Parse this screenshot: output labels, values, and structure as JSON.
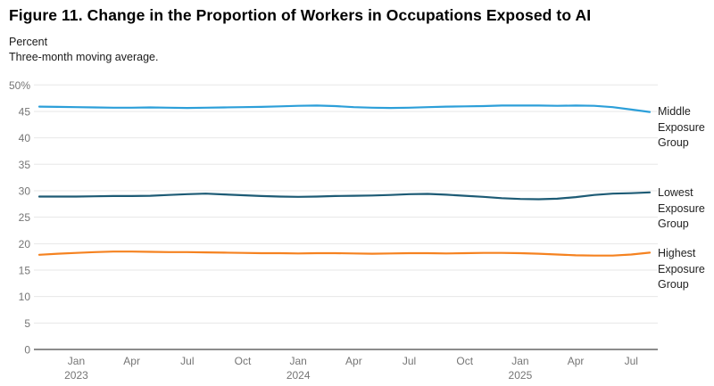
{
  "figure": {
    "title": "Figure 11. Change in the Proportion of Workers in Occupations Exposed to AI",
    "subtitle_unit": "Percent",
    "subtitle_note": "Three-month moving average."
  },
  "colors": {
    "middle": "#2C9FD9",
    "lowest": "#1D5B75",
    "highest": "#F58220",
    "gridline": "#E7E7E7",
    "zero_line": "#8C8C8C",
    "tick_label": "#757575",
    "series_label": "#222222",
    "background": "#FFFFFF"
  },
  "chart_data": {
    "type": "line",
    "title": "Figure 11. Change in the Proportion of Workers in Occupations Exposed to AI",
    "ylabel": "Percent",
    "note": "Three-month moving average.",
    "ylim": [
      0,
      50
    ],
    "grid": "horizontal",
    "legend_position": "right-end-labels",
    "y_ticks": [
      {
        "v": 50,
        "label": "50%"
      },
      {
        "v": 45,
        "label": "45"
      },
      {
        "v": 40,
        "label": "40"
      },
      {
        "v": 35,
        "label": "35"
      },
      {
        "v": 30,
        "label": "30"
      },
      {
        "v": 25,
        "label": "25"
      },
      {
        "v": 20,
        "label": "20"
      },
      {
        "v": 15,
        "label": "15"
      },
      {
        "v": 10,
        "label": "10"
      },
      {
        "v": 5,
        "label": "5"
      },
      {
        "v": 0,
        "label": "0"
      }
    ],
    "x": [
      "Nov 2022",
      "Dec 2022",
      "Jan 2023",
      "Feb 2023",
      "Mar 2023",
      "Apr 2023",
      "May 2023",
      "Jun 2023",
      "Jul 2023",
      "Aug 2023",
      "Sep 2023",
      "Oct 2023",
      "Nov 2023",
      "Dec 2023",
      "Jan 2024",
      "Feb 2024",
      "Mar 2024",
      "Apr 2024",
      "May 2024",
      "Jun 2024",
      "Jul 2024",
      "Aug 2024",
      "Sep 2024",
      "Oct 2024",
      "Nov 2024",
      "Dec 2024",
      "Jan 2025",
      "Feb 2025",
      "Mar 2025",
      "Apr 2025",
      "May 2025",
      "Jun 2025",
      "Jul 2025",
      "Aug 2025"
    ],
    "x_tick_labels": [
      {
        "month": "Jan",
        "year": "2023",
        "index": 2
      },
      {
        "month": "Apr",
        "year": "",
        "index": 5
      },
      {
        "month": "Jul",
        "year": "",
        "index": 8
      },
      {
        "month": "Oct",
        "year": "",
        "index": 11
      },
      {
        "month": "Jan",
        "year": "2024",
        "index": 14
      },
      {
        "month": "Apr",
        "year": "",
        "index": 17
      },
      {
        "month": "Jul",
        "year": "",
        "index": 20
      },
      {
        "month": "Oct",
        "year": "",
        "index": 23
      },
      {
        "month": "Jan",
        "year": "2025",
        "index": 26
      },
      {
        "month": "Apr",
        "year": "",
        "index": 29
      },
      {
        "month": "Jul",
        "year": "",
        "index": 32
      }
    ],
    "series": [
      {
        "name": "Middle Exposure Group",
        "color_key": "middle",
        "values": [
          45.9,
          45.85,
          45.8,
          45.75,
          45.7,
          45.7,
          45.75,
          45.7,
          45.65,
          45.7,
          45.75,
          45.8,
          45.85,
          45.95,
          46.05,
          46.1,
          46.0,
          45.8,
          45.7,
          45.65,
          45.7,
          45.8,
          45.9,
          45.95,
          46.0,
          46.1,
          46.1,
          46.1,
          46.05,
          46.1,
          46.05,
          45.8,
          45.35,
          44.9
        ]
      },
      {
        "name": "Lowest Exposure Group",
        "color_key": "lowest",
        "values": [
          28.9,
          28.9,
          28.9,
          28.95,
          29.0,
          29.0,
          29.05,
          29.2,
          29.35,
          29.45,
          29.3,
          29.15,
          29.0,
          28.9,
          28.85,
          28.9,
          29.0,
          29.05,
          29.1,
          29.2,
          29.35,
          29.4,
          29.25,
          29.05,
          28.85,
          28.6,
          28.45,
          28.4,
          28.5,
          28.8,
          29.2,
          29.45,
          29.55,
          29.7
        ]
      },
      {
        "name": "Highest Exposure Group",
        "color_key": "highest",
        "values": [
          17.9,
          18.1,
          18.25,
          18.4,
          18.5,
          18.5,
          18.45,
          18.4,
          18.4,
          18.35,
          18.3,
          18.25,
          18.2,
          18.2,
          18.15,
          18.2,
          18.2,
          18.15,
          18.1,
          18.15,
          18.2,
          18.2,
          18.15,
          18.2,
          18.25,
          18.25,
          18.2,
          18.1,
          17.95,
          17.8,
          17.75,
          17.75,
          17.95,
          18.3
        ]
      }
    ]
  }
}
